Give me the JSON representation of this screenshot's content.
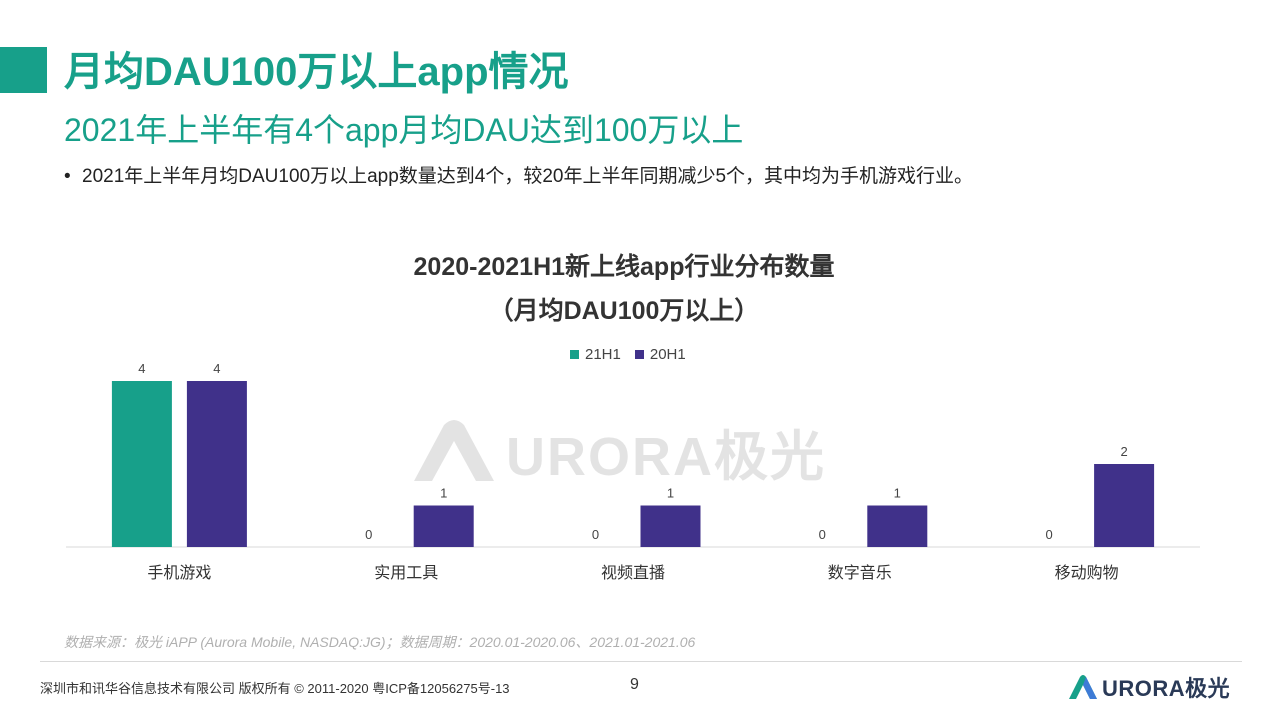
{
  "header": {
    "title": "月均DAU100万以上app情况",
    "subtitle": "2021年上半年有4个app月均DAU达到100万以上",
    "bullet_marker": "•",
    "bullet": "2021年上半年月均DAU100万以上app数量达到4个，较20年上半年同期减少5个，其中均为手机游戏行业。"
  },
  "chart_data": {
    "type": "bar",
    "title_line1": "2020-2021H1新上线app行业分布数量",
    "title_line2": "（月均DAU100万以上）",
    "categories": [
      "手机游戏",
      "实用工具",
      "视频直播",
      "数字音乐",
      "移动购物"
    ],
    "series": [
      {
        "name": "21H1",
        "values": [
          4,
          0,
          0,
          0,
          0
        ],
        "color": "#17a08a"
      },
      {
        "name": "20H1",
        "values": [
          4,
          1,
          1,
          1,
          2
        ],
        "color": "#40318a"
      }
    ],
    "ylim": [
      0,
      4
    ],
    "grid": false,
    "legend": "top-center",
    "data_labels": true
  },
  "watermark": "URORA极光",
  "footer": {
    "source": "数据来源：极光 iAPP (Aurora Mobile, NASDAQ:JG)；数据周期：2020.01-2020.06、2021.01-2021.06",
    "copyright": "深圳市和讯华谷信息技术有限公司  版权所有 © 2011-2020 粤ICP备12056275号-13",
    "page": "9",
    "logo": "URORA极光"
  },
  "colors": {
    "accent": "#17a08a",
    "secondary": "#40318a"
  }
}
